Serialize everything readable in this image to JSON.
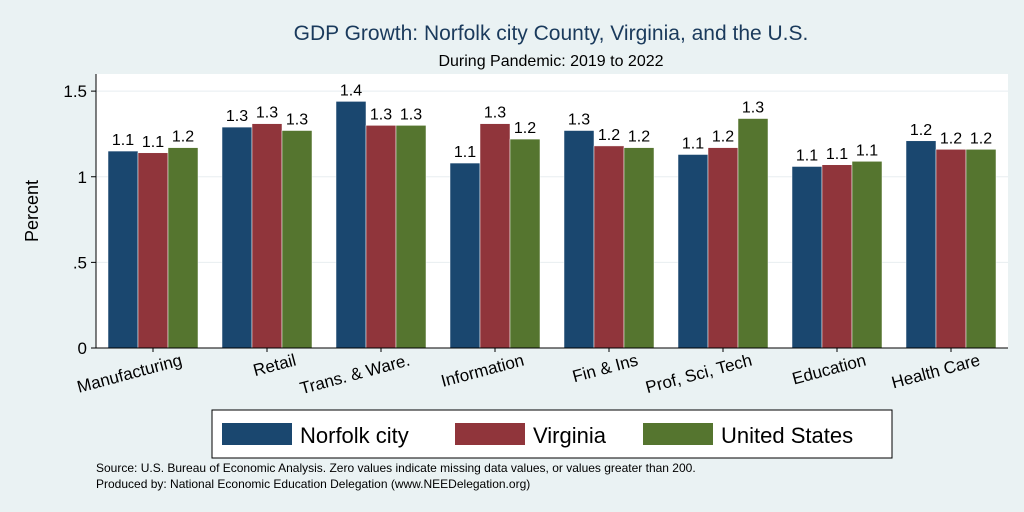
{
  "chart_data": {
    "type": "bar",
    "title": "GDP Growth: Norfolk city County, Virginia, and the U.S.",
    "subtitle": "During Pandemic: 2019 to 2022",
    "ylabel": "Percent",
    "xlabel": "",
    "ylim": [
      0,
      1.6
    ],
    "yticks": [
      0,
      0.5,
      1,
      1.5
    ],
    "ytick_labels": [
      "0",
      ".5",
      "1",
      "1.5"
    ],
    "grid": true,
    "legend_position": "bottom",
    "categories": [
      "Manufacturing",
      "Retail",
      "Trans. & Ware.",
      "Information",
      "Fin & Ins",
      "Prof, Sci, Tech",
      "Education",
      "Health Care"
    ],
    "series": [
      {
        "name": "Norfolk city",
        "color": "#1a476f",
        "values": [
          1.15,
          1.29,
          1.44,
          1.08,
          1.27,
          1.13,
          1.06,
          1.21
        ],
        "labels": [
          "1.1",
          "1.3",
          "1.4",
          "1.1",
          "1.3",
          "1.1",
          "1.1",
          "1.2"
        ]
      },
      {
        "name": "Virginia",
        "color": "#90353b",
        "values": [
          1.14,
          1.31,
          1.3,
          1.31,
          1.18,
          1.17,
          1.07,
          1.16
        ],
        "labels": [
          "1.1",
          "1.3",
          "1.3",
          "1.3",
          "1.2",
          "1.2",
          "1.1",
          "1.2"
        ]
      },
      {
        "name": "United States",
        "color": "#55752f",
        "values": [
          1.17,
          1.27,
          1.3,
          1.22,
          1.17,
          1.34,
          1.09,
          1.16
        ],
        "labels": [
          "1.2",
          "1.3",
          "1.3",
          "1.2",
          "1.2",
          "1.3",
          "1.1",
          "1.2"
        ]
      }
    ]
  },
  "notes": {
    "source": "Source: U.S. Bureau of Economic Analysis. Zero values indicate missing data values, or values greater than 200.",
    "produced": "Produced by: National Economic Education Delegation (www.NEEDelegation.org)"
  }
}
